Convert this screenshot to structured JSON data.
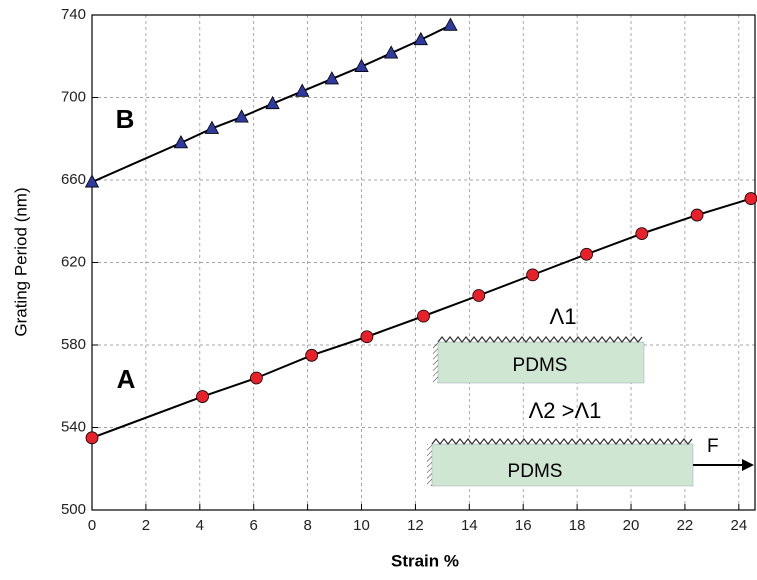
{
  "chart_data": {
    "type": "line",
    "x_label": "Strain %",
    "y_label": "Grating Period (nm)",
    "xlim": [
      0,
      24.6
    ],
    "ylim": [
      500,
      740
    ],
    "xticks": [
      0,
      2,
      4,
      6,
      8,
      10,
      12,
      14,
      16,
      18,
      20,
      22,
      24
    ],
    "yticks": [
      500,
      540,
      580,
      620,
      660,
      700,
      740
    ],
    "grid": true,
    "series": [
      {
        "name": "A",
        "color": "#e8202a",
        "marker": "circle",
        "x": [
          0,
          4.1,
          6.1,
          8.15,
          10.2,
          12.3,
          14.35,
          16.35,
          18.35,
          20.4,
          22.45,
          24.45
        ],
        "values": [
          535,
          555,
          564,
          575,
          584,
          594,
          604,
          614,
          624,
          634,
          643,
          651
        ]
      },
      {
        "name": "B",
        "color": "#2e3a9e",
        "marker": "triangle",
        "x": [
          0,
          3.3,
          4.45,
          5.55,
          6.7,
          7.8,
          8.9,
          10.0,
          11.1,
          12.2,
          13.3
        ],
        "values": [
          659,
          678,
          685,
          690.5,
          697,
          703,
          709,
          715,
          721.5,
          728,
          735
        ]
      }
    ],
    "annotations": [
      "Λ1",
      "PDMS",
      "Λ2 >Λ1",
      "PDMS",
      "F"
    ]
  }
}
